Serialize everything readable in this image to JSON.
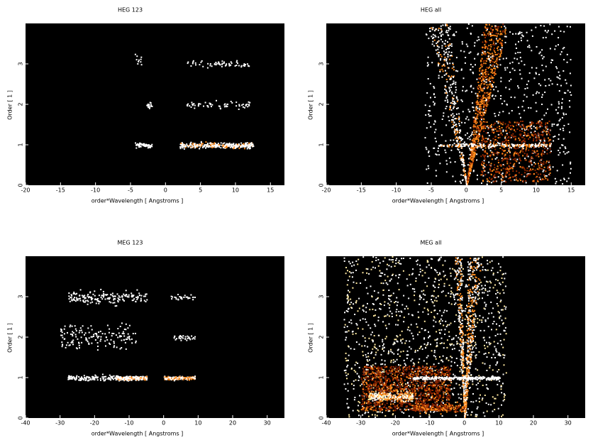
{
  "chart_data": [
    {
      "type": "image",
      "title": "HEG 123",
      "xlabel": "order*Wavelength [ Angstroms ]",
      "ylabel": "Order [ 1 ]",
      "xlim": [
        -20,
        17
      ],
      "xticks": [
        -20,
        -15,
        -10,
        -5,
        0,
        5,
        10,
        15
      ],
      "ylim": [
        0,
        4
      ],
      "yticks": [
        0,
        1,
        2,
        3
      ]
    },
    {
      "type": "image",
      "title": "HEG all",
      "xlabel": "order*Wavelength [ Angstroms ]",
      "ylabel": "Order [ 1 ]",
      "xlim": [
        -20,
        17
      ],
      "xticks": [
        -20,
        -15,
        -10,
        -5,
        0,
        5,
        10,
        15
      ],
      "ylim": [
        0,
        4
      ],
      "yticks": [
        0,
        1,
        2,
        3
      ]
    },
    {
      "type": "image",
      "title": "MEG 123",
      "xlabel": "order*Wavelength [ Angstroms ]",
      "ylabel": "Order [ 1 ]",
      "xlim": [
        -40,
        35
      ],
      "xticks": [
        -40,
        -30,
        -20,
        -10,
        0,
        10,
        20,
        30
      ],
      "ylim": [
        0,
        4
      ],
      "yticks": [
        0,
        1,
        2,
        3
      ]
    },
    {
      "type": "image",
      "title": "MEG all",
      "xlabel": "order*Wavelength [ Angstroms ]",
      "ylabel": "Order [ 1 ]",
      "xlim": [
        -40,
        35
      ],
      "xticks": [
        -40,
        -30,
        -20,
        -10,
        0,
        10,
        20,
        30
      ],
      "ylim": [
        0,
        4
      ],
      "yticks": [
        0,
        1,
        2,
        3
      ]
    }
  ]
}
